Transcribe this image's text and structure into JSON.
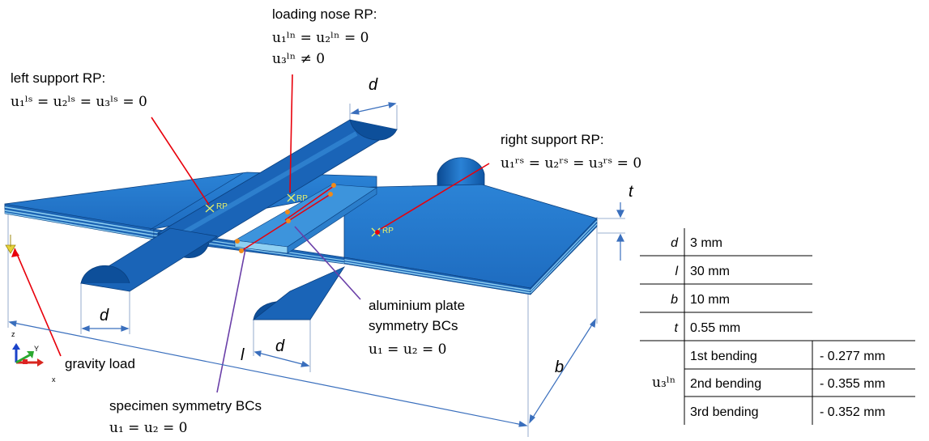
{
  "labels": {
    "loading_nose": {
      "title": "loading nose RP:",
      "eq1": "u₁ˡⁿ = u₂ˡⁿ = 0",
      "eq2": "u₃ˡⁿ ≠ 0"
    },
    "left_support": {
      "title": "left support RP:",
      "eq1": "u₁ˡˢ = u₂ˡˢ = u₃ˡˢ = 0"
    },
    "right_support": {
      "title": "right support RP:",
      "eq1": "u₁ʳˢ = u₂ʳˢ = u₃ʳˢ = 0"
    },
    "aluminium": {
      "line1": "aluminium plate",
      "line2": "symmetry BCs",
      "eq": "u₁ = u₂ = 0"
    },
    "specimen": {
      "line1": "specimen symmetry BCs",
      "eq": "u₁ = u₂ = 0"
    },
    "gravity": "gravity load",
    "rp_marker": "RP"
  },
  "dimensions": {
    "d": "d",
    "l": "l",
    "b": "b",
    "t": "t"
  },
  "axes": {
    "x": "x",
    "y": "Y",
    "z": "z"
  },
  "table": {
    "rows": [
      {
        "symbol": "d",
        "value": "3 mm"
      },
      {
        "symbol": "l",
        "value": "30 mm"
      },
      {
        "symbol": "b",
        "value": "10 mm"
      },
      {
        "symbol": "t",
        "value": "0.55 mm"
      }
    ],
    "u3_symbol": "u₃ˡⁿ",
    "bending": [
      {
        "label": "1st bending",
        "value": "- 0.277 mm"
      },
      {
        "label": "2nd bending",
        "value": "- 0.355 mm"
      },
      {
        "label": "3rd bending",
        "value": "- 0.352 mm"
      }
    ]
  },
  "colors": {
    "part_blue": "#1f6fc5",
    "part_dark": "#0c4e98",
    "edge_light": "#8fd0f2",
    "leader_red": "#e8000b",
    "leader_purple": "#6a3fa8",
    "dim_blue": "#3a6fbd",
    "marker_orange": "#f08a1a"
  }
}
